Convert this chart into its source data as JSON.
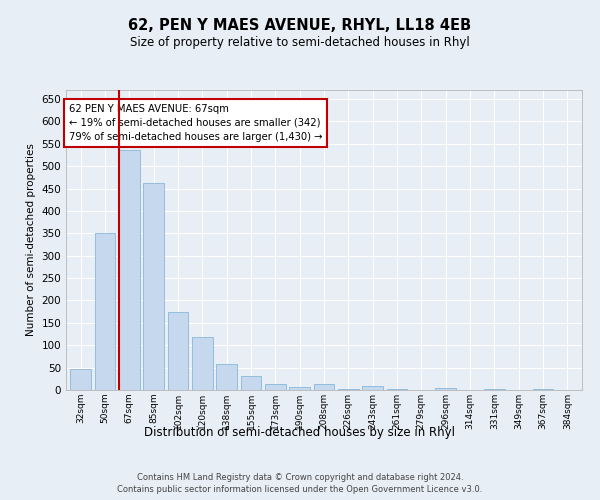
{
  "title": "62, PEN Y MAES AVENUE, RHYL, LL18 4EB",
  "subtitle": "Size of property relative to semi-detached houses in Rhyl",
  "xlabel": "Distribution of semi-detached houses by size in Rhyl",
  "ylabel": "Number of semi-detached properties",
  "categories": [
    "32sqm",
    "50sqm",
    "67sqm",
    "85sqm",
    "102sqm",
    "120sqm",
    "138sqm",
    "155sqm",
    "173sqm",
    "190sqm",
    "208sqm",
    "226sqm",
    "243sqm",
    "261sqm",
    "279sqm",
    "296sqm",
    "314sqm",
    "331sqm",
    "349sqm",
    "367sqm",
    "384sqm"
  ],
  "values": [
    47,
    350,
    535,
    462,
    175,
    118,
    57,
    32,
    13,
    7,
    14,
    3,
    9,
    3,
    0,
    5,
    0,
    3,
    0,
    3,
    0
  ],
  "bar_color": "#c5d8ed",
  "bar_edge_color": "#7aadd4",
  "highlight_bar_index": 2,
  "highlight_color": "#c00000",
  "annotation_line": {
    "text_line1": "62 PEN Y MAES AVENUE: 67sqm",
    "text_line2": "← 19% of semi-detached houses are smaller (342)",
    "text_line3": "79% of semi-detached houses are larger (1,430) →"
  },
  "ylim": [
    0,
    670
  ],
  "yticks": [
    0,
    50,
    100,
    150,
    200,
    250,
    300,
    350,
    400,
    450,
    500,
    550,
    600,
    650
  ],
  "background_color": "#e8eef5",
  "fig_background_color": "#e8eef5",
  "grid_color": "#ffffff",
  "footer_line1": "Contains HM Land Registry data © Crown copyright and database right 2024.",
  "footer_line2": "Contains public sector information licensed under the Open Government Licence v3.0."
}
